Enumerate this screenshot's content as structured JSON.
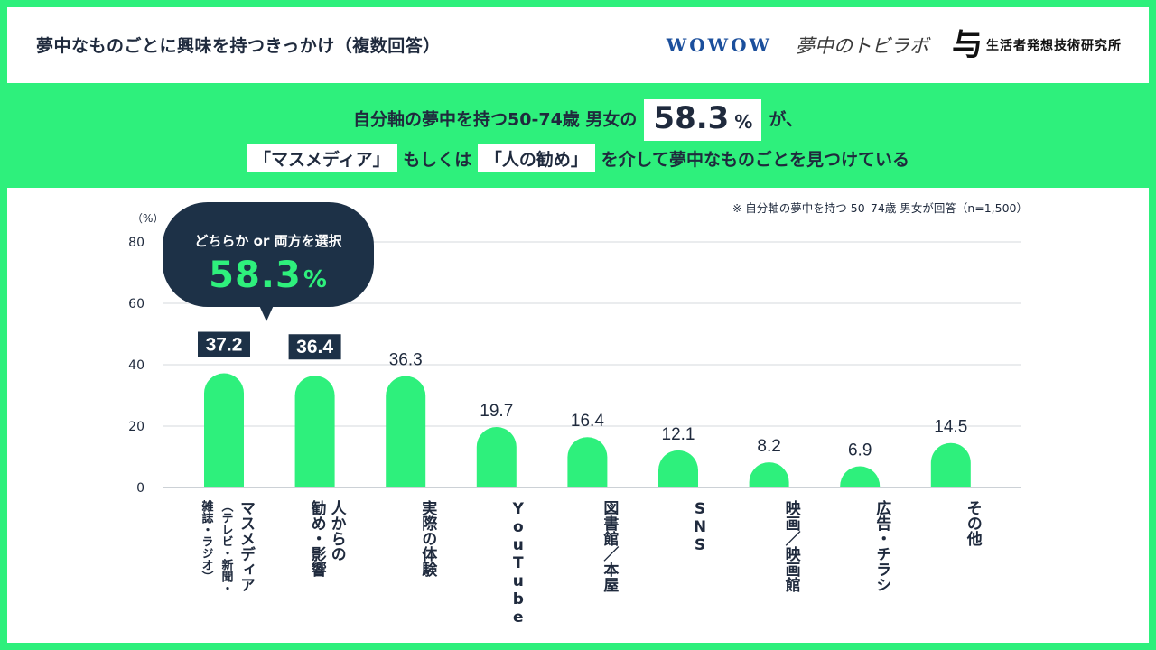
{
  "page": {
    "title": "夢中なものごとに興味を持つきっかけ（複数回答）",
    "logos": {
      "wowow": "WOWOW",
      "lab": "夢中のトビラボ",
      "hakuhodo_mark": "与",
      "hakuhodo_name": "生活者発想技術研究所"
    },
    "colors": {
      "accent": "#2ef07c",
      "navy": "#1d3147",
      "text": "#1f2a3d"
    }
  },
  "headline": {
    "line1_prefix": "自分軸の夢中を持つ50-74歳 男女の",
    "line1_value": "58.3",
    "line1_unit": "%",
    "line1_suffix": "が、",
    "line2_box1": "「マスメディア」",
    "line2_mid1": "もしくは",
    "line2_box2": "「人の勧め」",
    "line2_suffix": "を介して夢中なものごとを見つけている"
  },
  "note": "※ 自分軸の夢中を持つ 50–74歳 男女が回答（n=1,500）",
  "callout": {
    "label": "どちらか or 両方を選択",
    "value": "58.3",
    "unit": "%"
  },
  "chart_data": {
    "type": "bar",
    "yunit": "（%）",
    "ylim": [
      0,
      80
    ],
    "yticks": [
      "0",
      "20",
      "40",
      "60",
      "80"
    ],
    "grid": true,
    "categories": [
      [
        "マスメディア",
        "（テレビ・新聞・",
        "雑誌・ラジオ）"
      ],
      [
        "人からの",
        "勧め・影響"
      ],
      [
        "実際の体験"
      ],
      [
        "YouTube"
      ],
      [
        "図書館／本屋"
      ],
      [
        "SNS"
      ],
      [
        "映画／映画館"
      ],
      [
        "広告・チラシ"
      ],
      [
        "その他"
      ]
    ],
    "values": [
      37.2,
      36.4,
      36.3,
      19.7,
      16.4,
      12.1,
      8.2,
      6.9,
      14.5
    ],
    "labels": [
      "37.2",
      "36.4",
      "36.3",
      "19.7",
      "16.4",
      "12.1",
      "8.2",
      "6.9",
      "14.5"
    ],
    "highlighted": [
      true,
      true,
      false,
      false,
      false,
      false,
      false,
      false,
      false
    ]
  }
}
